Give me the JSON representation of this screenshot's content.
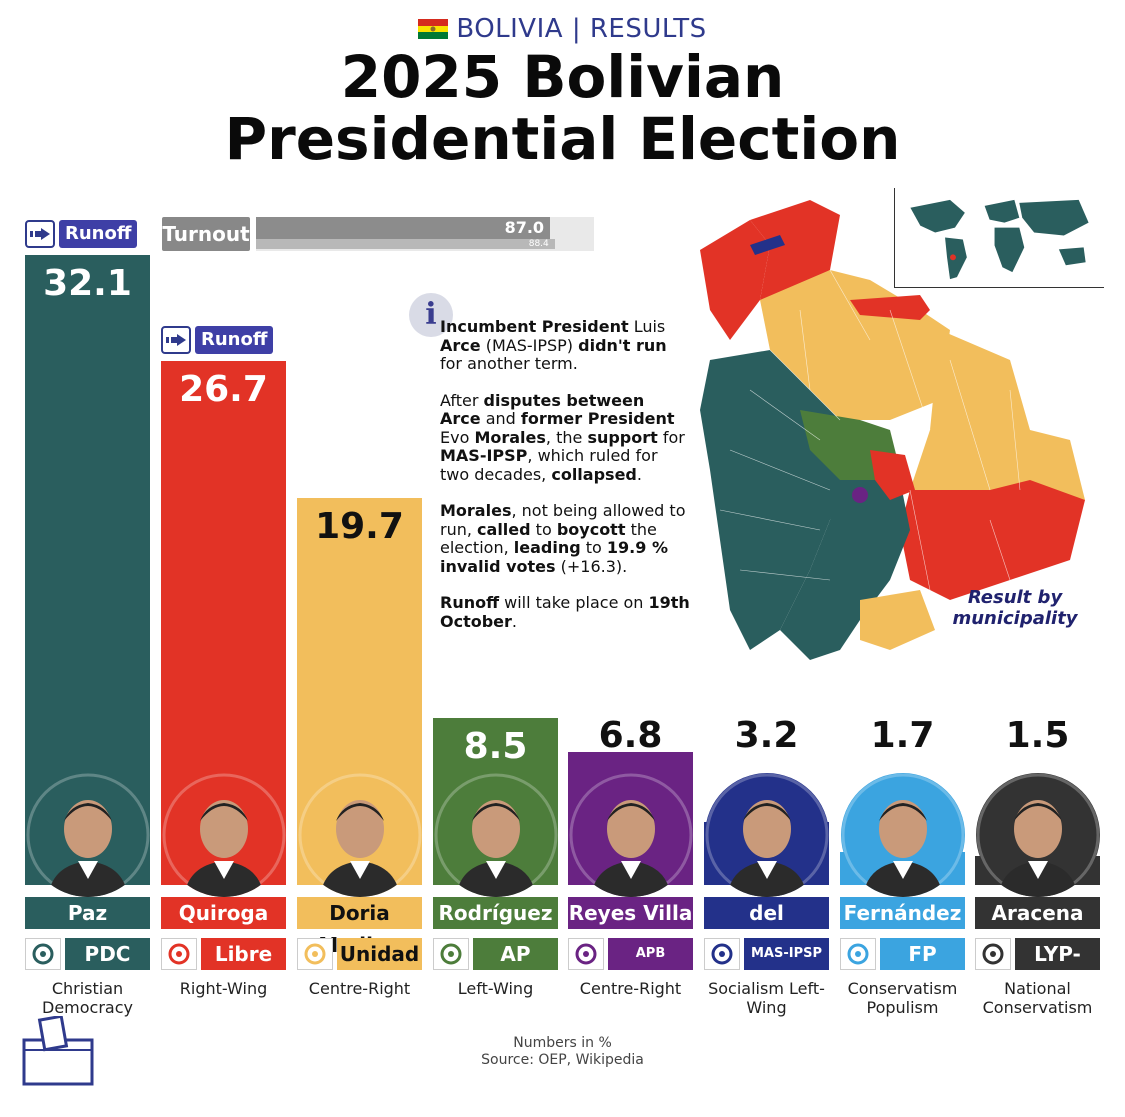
{
  "header": {
    "kicker": "BOLIVIA | RESULTS",
    "title_line1": "2025 Bolivian",
    "title_line2": "Presidential Election"
  },
  "colors": {
    "pdc": "#2a5e5e",
    "libre": "#e23326",
    "unidad": "#f2be5c",
    "ap": "#4d7d3b",
    "apb": "#6a2383",
    "mas": "#23318a",
    "fp": "#3ba4e0",
    "lyp": "#333333",
    "runoff_tag": "#3e3fa6"
  },
  "runoff_label": "Runoff",
  "turnout": {
    "label": "Turnout",
    "value": 87.0,
    "value_text": "87.0",
    "previous": 88.4,
    "previous_text": "88.4"
  },
  "info": {
    "p1": {
      "b1": "Incumbent President",
      "t1": " Luis ",
      "b2": "Arce",
      "t2": " (MAS-IPSP) ",
      "b3": "didn't run",
      "t3": " for another term."
    },
    "p2": {
      "t1": "After ",
      "b1": "disputes between Arce",
      "t2": " and ",
      "b2": "former President",
      "t3": " Evo ",
      "b3": "Morales",
      "t4": ", the ",
      "b4": "support",
      "t5": " for ",
      "b5": "MAS-IPSP",
      "t6": ", which ruled for two decades, ",
      "b6": "collapsed",
      "t7": "."
    },
    "p3": {
      "b1": "Morales",
      "t1": ", not being allowed to run, ",
      "b2": "called",
      "t2": " to ",
      "b3": "boycott",
      "t3": " the election, ",
      "b4": "leading",
      "t4": " to ",
      "b5": "19.9 % invalid votes",
      "t5": " (+16.3)."
    },
    "p4": {
      "b1": "Runoff",
      "t1": " will take place on ",
      "b2": "19th October",
      "t2": "."
    }
  },
  "map": {
    "caption": "Result by municipality"
  },
  "chart_data": {
    "type": "bar",
    "title": "2025 Bolivian Presidential Election",
    "unit": "%",
    "categories": [
      "Paz",
      "Quiroga",
      "Doria Medina",
      "Rodríguez",
      "Reyes Villa",
      "del Castillo",
      "Fernández",
      "Aracena"
    ],
    "values": [
      32.1,
      26.7,
      19.7,
      8.5,
      6.8,
      3.2,
      1.7,
      1.5
    ],
    "value_labels": [
      "32.1",
      "26.7",
      "19.7",
      "8.5",
      "6.8",
      "3.2",
      "1.7",
      "1.5"
    ],
    "runoff": [
      true,
      true,
      false,
      false,
      false,
      false,
      false,
      false
    ],
    "parties": [
      "PDC",
      "Libre",
      "Unidad",
      "AP",
      "APB Súmate",
      "MAS-IPSP",
      "FP",
      "LYP-ADN"
    ],
    "ideologies": [
      "Christian Democracy",
      "Right-Wing",
      "Centre-Right",
      "Left-Wing",
      "Centre-Right",
      "Socialism Left-Wing",
      "Conservatism Populism",
      "National Conservatism"
    ],
    "ylim": [
      0,
      32.1
    ]
  },
  "footer": {
    "note": "Numbers in %",
    "source": "Source: OEP, Wikipedia"
  }
}
